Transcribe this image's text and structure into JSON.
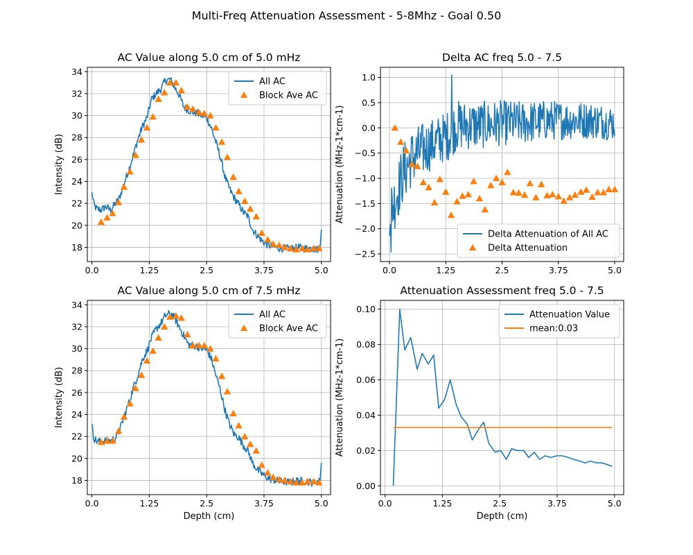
{
  "figure": {
    "title": "Multi-Freq Attenuation Assessment - 5-8Mhz - Goal 0.50"
  },
  "colors": {
    "line": "#1f77b4",
    "marker": "#ff7f0e",
    "grid": "#b0b0b0"
  },
  "chart_data": [
    {
      "id": "ac5",
      "type": "line",
      "title": "AC Value along 5.0 cm of 5.0 mHz",
      "xlabel": "",
      "ylabel": "Intensity (dB)",
      "xlim": [
        -0.1,
        5.2
      ],
      "ylim": [
        16.7,
        34.4
      ],
      "xticks": [
        0.0,
        1.25,
        2.5,
        3.75,
        5.0
      ],
      "xtick_labels": [
        "0.0",
        "1.25",
        "2.5",
        "3.75",
        "5.0"
      ],
      "yticks": [
        18,
        20,
        22,
        24,
        26,
        28,
        30,
        32,
        34
      ],
      "ytick_labels": [
        "18",
        "20",
        "22",
        "24",
        "26",
        "28",
        "30",
        "32",
        "34"
      ],
      "grid": true,
      "legend": "top-right",
      "series": [
        {
          "name": "All AC",
          "kind": "line",
          "x": [
            0.0,
            0.05,
            0.1,
            0.2,
            0.3,
            0.4,
            0.5,
            0.6,
            0.7,
            0.8,
            0.9,
            1.0,
            1.1,
            1.2,
            1.3,
            1.4,
            1.5,
            1.6,
            1.7,
            1.75,
            1.8,
            1.9,
            2.0,
            2.1,
            2.2,
            2.3,
            2.4,
            2.5,
            2.6,
            2.7,
            2.8,
            2.9,
            3.0,
            3.1,
            3.2,
            3.3,
            3.4,
            3.5,
            3.6,
            3.7,
            3.8,
            3.9,
            4.0,
            4.1,
            4.2,
            4.3,
            4.4,
            4.5,
            4.6,
            4.7,
            4.8,
            4.9,
            4.97,
            5.0
          ],
          "y": [
            22.9,
            21.8,
            21.5,
            21.4,
            21.7,
            21.4,
            21.9,
            22.5,
            23.8,
            25.0,
            26.4,
            27.8,
            29.0,
            29.8,
            31.5,
            32.0,
            32.4,
            33.2,
            33.3,
            33.0,
            32.6,
            31.9,
            30.8,
            30.5,
            30.3,
            30.2,
            30.0,
            29.8,
            28.9,
            27.6,
            26.2,
            24.4,
            23.3,
            22.5,
            21.9,
            21.2,
            20.8,
            19.6,
            19.1,
            18.6,
            18.3,
            18.1,
            18.0,
            17.9,
            17.9,
            17.9,
            17.9,
            18.0,
            17.9,
            17.9,
            17.9,
            17.8,
            17.9,
            19.6
          ]
        },
        {
          "name": "Block Ave AC",
          "kind": "marker",
          "x": [
            0.2,
            0.33,
            0.45,
            0.58,
            0.7,
            0.83,
            0.95,
            1.08,
            1.2,
            1.33,
            1.45,
            1.58,
            1.7,
            1.83,
            1.95,
            2.08,
            2.2,
            2.33,
            2.45,
            2.58,
            2.7,
            2.83,
            2.95,
            3.08,
            3.2,
            3.33,
            3.45,
            3.58,
            3.7,
            3.83,
            3.95,
            4.08,
            4.2,
            4.33,
            4.45,
            4.58,
            4.7,
            4.83,
            4.95
          ],
          "y": [
            20.3,
            20.7,
            21.1,
            22.1,
            23.5,
            24.9,
            26.4,
            27.8,
            28.9,
            29.9,
            31.5,
            32.1,
            33.0,
            33.0,
            32.3,
            30.8,
            30.6,
            30.3,
            30.2,
            30.0,
            28.9,
            27.6,
            26.2,
            24.4,
            23.1,
            22.2,
            21.5,
            20.8,
            19.3,
            18.7,
            18.3,
            18.2,
            18.0,
            17.9,
            17.8,
            17.9,
            17.8,
            17.9,
            17.9
          ]
        }
      ]
    },
    {
      "id": "delta",
      "type": "line",
      "title": "Delta AC freq 5.0 - 7.5",
      "xlabel": "",
      "ylabel": "Attenuation (MHz-1*cm-1)",
      "xlim": [
        -0.2,
        5.2
      ],
      "ylim": [
        -2.65,
        1.2
      ],
      "xticks": [
        0.0,
        1.25,
        2.5,
        3.75,
        5.0
      ],
      "xtick_labels": [
        "0.0",
        "1.25",
        "2.5",
        "3.75",
        "5.0"
      ],
      "yticks": [
        -2.5,
        -2.0,
        -1.5,
        -1.0,
        -0.5,
        0.0,
        0.5,
        1.0
      ],
      "ytick_labels": [
        "−2.5",
        "−2.0",
        "−1.5",
        "−1.0",
        "−0.5",
        "0.0",
        "0.5",
        "1.0"
      ],
      "grid": true,
      "legend": "bottom-right",
      "series": [
        {
          "name": "Delta Attenuation of All AC",
          "kind": "noisy-line",
          "x_start": 0.0,
          "x_end": 5.0,
          "samples": 420,
          "trend_x": [
            0.0,
            0.1,
            0.2,
            0.3,
            0.5,
            0.7,
            1.0,
            1.3,
            1.5,
            2.0,
            2.5,
            3.0,
            3.5,
            4.0,
            4.5,
            5.0
          ],
          "trend_y": [
            -1.6,
            -1.5,
            -1.2,
            -0.9,
            -0.6,
            -0.45,
            -0.3,
            -0.15,
            0.05,
            0.05,
            0.1,
            0.1,
            0.15,
            0.15,
            0.15,
            0.1
          ],
          "amp_x": [
            0.0,
            0.3,
            1.0,
            1.5,
            2.5,
            3.5,
            5.0
          ],
          "amp_y": [
            0.55,
            0.6,
            0.5,
            0.5,
            0.45,
            0.4,
            0.35
          ],
          "min": -2.46,
          "max": 1.05
        },
        {
          "name": "Delta Attenuation",
          "kind": "marker",
          "x": [
            0.12,
            0.25,
            0.37,
            0.5,
            0.62,
            0.75,
            0.87,
            1.0,
            1.12,
            1.25,
            1.37,
            1.5,
            1.62,
            1.75,
            1.87,
            2.0,
            2.12,
            2.25,
            2.37,
            2.5,
            2.62,
            2.75,
            2.87,
            3.0,
            3.12,
            3.25,
            3.37,
            3.5,
            3.62,
            3.75,
            3.87,
            4.0,
            4.12,
            4.25,
            4.37,
            4.5,
            4.62,
            4.75,
            4.87,
            5.0
          ],
          "y": [
            0.0,
            -0.28,
            -0.45,
            -0.72,
            -0.76,
            -1.08,
            -1.18,
            -1.48,
            -1.02,
            -1.27,
            -1.73,
            -1.46,
            -1.35,
            -1.32,
            -1.06,
            -1.4,
            -1.62,
            -1.14,
            -1.0,
            -1.08,
            -0.88,
            -1.28,
            -1.29,
            -1.33,
            -1.1,
            -1.38,
            -1.12,
            -1.34,
            -1.32,
            -1.36,
            -1.45,
            -1.38,
            -1.33,
            -1.27,
            -1.23,
            -1.37,
            -1.28,
            -1.28,
            -1.22,
            -1.22
          ]
        }
      ]
    },
    {
      "id": "ac75",
      "type": "line",
      "title": "AC Value along 5.0 cm of 7.5 mHz",
      "xlabel": "Depth (cm)",
      "ylabel": "Intensity (dB)",
      "xlim": [
        -0.1,
        5.2
      ],
      "ylim": [
        16.7,
        34.4
      ],
      "xticks": [
        0.0,
        1.25,
        2.5,
        3.75,
        5.0
      ],
      "xtick_labels": [
        "0.0",
        "1.25",
        "2.5",
        "3.75",
        "5.0"
      ],
      "yticks": [
        18,
        20,
        22,
        24,
        26,
        28,
        30,
        32,
        34
      ],
      "ytick_labels": [
        "18",
        "20",
        "22",
        "24",
        "26",
        "28",
        "30",
        "32",
        "34"
      ],
      "grid": true,
      "legend": "top-right",
      "series": [
        {
          "name": "All AC",
          "kind": "line",
          "x": [
            0.0,
            0.05,
            0.1,
            0.2,
            0.3,
            0.4,
            0.5,
            0.6,
            0.7,
            0.8,
            0.9,
            1.0,
            1.1,
            1.2,
            1.3,
            1.4,
            1.5,
            1.6,
            1.7,
            1.75,
            1.8,
            1.9,
            2.0,
            2.1,
            2.2,
            2.3,
            2.4,
            2.5,
            2.6,
            2.7,
            2.8,
            2.9,
            3.0,
            3.1,
            3.2,
            3.3,
            3.4,
            3.5,
            3.6,
            3.7,
            3.8,
            3.9,
            4.0,
            4.1,
            4.2,
            4.3,
            4.4,
            4.5,
            4.6,
            4.7,
            4.8,
            4.9,
            4.97,
            5.0
          ],
          "y": [
            22.9,
            21.8,
            21.6,
            21.5,
            21.6,
            21.6,
            21.8,
            22.5,
            23.8,
            25.0,
            26.4,
            27.6,
            29.0,
            29.8,
            31.0,
            31.8,
            32.3,
            33.0,
            33.2,
            33.1,
            32.8,
            32.0,
            31.2,
            30.4,
            30.3,
            30.2,
            30.0,
            29.9,
            29.1,
            27.6,
            26.2,
            24.4,
            23.1,
            22.2,
            21.9,
            21.2,
            20.7,
            19.6,
            19.0,
            18.6,
            18.3,
            18.1,
            18.0,
            17.9,
            17.9,
            17.8,
            17.9,
            18.0,
            17.9,
            17.9,
            17.8,
            17.9,
            17.9,
            19.6
          ]
        },
        {
          "name": "Block Ave AC",
          "kind": "marker",
          "x": [
            0.2,
            0.33,
            0.45,
            0.58,
            0.7,
            0.83,
            0.95,
            1.08,
            1.2,
            1.33,
            1.45,
            1.58,
            1.7,
            1.83,
            1.95,
            2.08,
            2.2,
            2.33,
            2.45,
            2.58,
            2.7,
            2.83,
            2.95,
            3.08,
            3.2,
            3.33,
            3.45,
            3.58,
            3.7,
            3.83,
            3.95,
            4.08,
            4.2,
            4.33,
            4.45,
            4.58,
            4.7,
            4.83,
            4.95
          ],
          "y": [
            21.5,
            21.6,
            21.6,
            22.5,
            23.8,
            25.0,
            26.4,
            27.6,
            28.9,
            29.8,
            31.0,
            32.0,
            32.9,
            33.0,
            32.8,
            31.3,
            30.3,
            30.3,
            30.3,
            30.0,
            29.1,
            27.5,
            26.1,
            24.1,
            23.0,
            22.0,
            21.3,
            20.7,
            19.4,
            18.7,
            18.3,
            18.1,
            18.0,
            17.9,
            17.8,
            17.8,
            17.9,
            17.9,
            17.8
          ]
        }
      ]
    },
    {
      "id": "atten",
      "type": "line",
      "title": "Attenuation Assessment freq 5.0 - 7.5",
      "xlabel": "Depth (cm)",
      "ylabel": "Attenuation (MHz-1*cm-1)",
      "xlim": [
        -0.1,
        5.2
      ],
      "ylim": [
        -0.005,
        0.105
      ],
      "xticks": [
        0.0,
        1.25,
        2.5,
        3.75,
        5.0
      ],
      "xtick_labels": [
        "0.0",
        "1.25",
        "2.5",
        "3.75",
        "5.0"
      ],
      "yticks": [
        0.0,
        0.02,
        0.04,
        0.06,
        0.08,
        0.1
      ],
      "ytick_labels": [
        "0.00",
        "0.02",
        "0.04",
        "0.06",
        "0.08",
        "0.10"
      ],
      "grid": true,
      "legend": "top-right",
      "series": [
        {
          "name": "Attenuation Value",
          "kind": "line",
          "x": [
            0.18,
            0.32,
            0.43,
            0.56,
            0.7,
            0.81,
            0.94,
            1.06,
            1.17,
            1.3,
            1.42,
            1.55,
            1.66,
            1.79,
            1.9,
            2.04,
            2.15,
            2.26,
            2.4,
            2.52,
            2.64,
            2.76,
            2.88,
            3.02,
            3.13,
            3.25,
            3.37,
            3.49,
            3.61,
            3.74,
            3.86,
            4.0,
            4.11,
            4.24,
            4.36,
            4.48,
            4.6,
            4.72,
            4.85,
            4.95
          ],
          "y": [
            0.0,
            0.1,
            0.077,
            0.084,
            0.066,
            0.075,
            0.069,
            0.074,
            0.044,
            0.049,
            0.06,
            0.046,
            0.039,
            0.035,
            0.026,
            0.032,
            0.036,
            0.024,
            0.019,
            0.02,
            0.015,
            0.021,
            0.02,
            0.02,
            0.016,
            0.019,
            0.015,
            0.017,
            0.016,
            0.017,
            0.017,
            0.016,
            0.015,
            0.014,
            0.013,
            0.014,
            0.013,
            0.013,
            0.012,
            0.011
          ]
        },
        {
          "name": "mean:0.03",
          "kind": "hline",
          "x": [
            0.18,
            4.95
          ],
          "y": [
            0.033,
            0.033
          ]
        }
      ]
    }
  ]
}
